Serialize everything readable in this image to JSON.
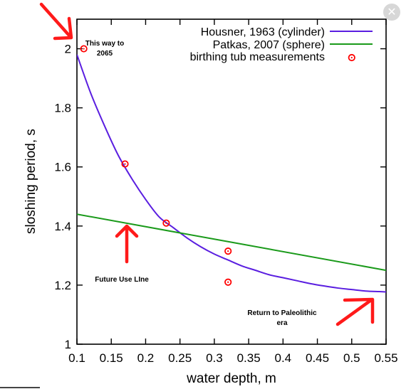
{
  "chart_data": {
    "type": "line",
    "title": "",
    "xlabel": "water depth, m",
    "ylabel": "sloshing period, s",
    "xlim": [
      0.1,
      0.55
    ],
    "ylim": [
      1,
      2.1
    ],
    "x_ticks": [
      0.1,
      0.15,
      0.2,
      0.25,
      0.3,
      0.35,
      0.4,
      0.45,
      0.5,
      0.55
    ],
    "x_tick_labels": [
      "0.1",
      "0.15",
      "0.2",
      "0.25",
      "0.3",
      "0.35",
      "0.4",
      "0.45",
      "0.5",
      "0.55"
    ],
    "y_ticks": [
      1,
      1.2,
      1.4,
      1.6,
      1.8,
      2
    ],
    "y_tick_labels": [
      "1",
      "1.2",
      "1.4",
      "1.6",
      "1.8",
      "2"
    ],
    "grid": false,
    "legend_position": "top-right",
    "series": [
      {
        "name": "Housner, 1963 (cylinder)",
        "kind": "line",
        "color": "#5a1ee0",
        "x": [
          0.1,
          0.12,
          0.14,
          0.16,
          0.18,
          0.2,
          0.22,
          0.24,
          0.26,
          0.28,
          0.3,
          0.32,
          0.34,
          0.36,
          0.38,
          0.4,
          0.42,
          0.44,
          0.46,
          0.48,
          0.5,
          0.52,
          0.54,
          0.55
        ],
        "y": [
          1.98,
          1.85,
          1.74,
          1.64,
          1.56,
          1.49,
          1.43,
          1.395,
          1.36,
          1.33,
          1.305,
          1.285,
          1.265,
          1.25,
          1.235,
          1.225,
          1.215,
          1.205,
          1.197,
          1.19,
          1.185,
          1.18,
          1.178,
          1.177
        ]
      },
      {
        "name": "Patkas, 2007 (sphere)",
        "kind": "line",
        "color": "#1a9a1a",
        "x": [
          0.1,
          0.55
        ],
        "y": [
          1.44,
          1.25
        ]
      },
      {
        "name": "birthing tub measurements",
        "kind": "scatter",
        "color": "#ff0000",
        "x": [
          0.11,
          0.17,
          0.23,
          0.32,
          0.32,
          0.5
        ],
        "y": [
          2.0,
          1.61,
          1.41,
          1.315,
          1.21,
          1.97
        ]
      }
    ],
    "annotations": [
      {
        "id": "ann-2065",
        "lines": [
          "This way to",
          "2065"
        ]
      },
      {
        "id": "ann-future",
        "lines": [
          "Future Use LIne"
        ]
      },
      {
        "id": "ann-paleo",
        "lines": [
          "Return to Paleolithic",
          "era"
        ]
      }
    ]
  },
  "ui": {
    "close_glyph": "✕"
  }
}
